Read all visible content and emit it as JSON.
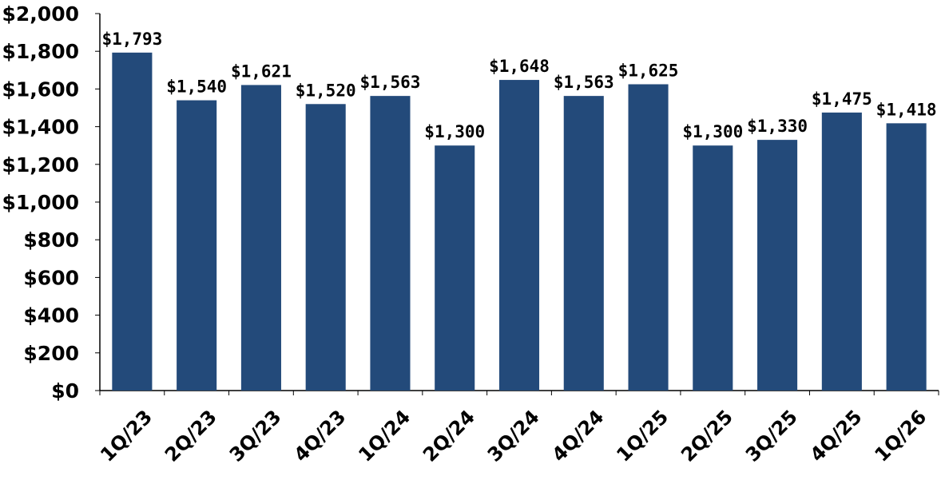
{
  "chart_data": {
    "type": "bar",
    "title": "",
    "xlabel": "",
    "ylabel": "",
    "categories": [
      "1Q/23",
      "2Q/23",
      "3Q/23",
      "4Q/23",
      "1Q/24",
      "2Q/24",
      "3Q/24",
      "4Q/24",
      "1Q/25",
      "2Q/25",
      "3Q/25",
      "4Q/25",
      "1Q/26"
    ],
    "values": [
      1793,
      1540,
      1621,
      1520,
      1563,
      1300,
      1648,
      1563,
      1625,
      1300,
      1330,
      1475,
      1418
    ],
    "value_labels": [
      "$1,793",
      "$1,540",
      "$1,621",
      "$1,520",
      "$1,563",
      "$1,300",
      "$1,648",
      "$1,563",
      "$1,625",
      "$1,300",
      "$1,330",
      "$1,475",
      "$1,418"
    ],
    "ylim": [
      0,
      2000
    ],
    "yticks": [
      0,
      200,
      400,
      600,
      800,
      1000,
      1200,
      1400,
      1600,
      1800,
      2000
    ],
    "ytick_labels": [
      "$0",
      "$200",
      "$400",
      "$600",
      "$800",
      "$1,000",
      "$1,200",
      "$1,400",
      "$1,600",
      "$1,800",
      "$2,000"
    ],
    "grid": false,
    "legend": "none",
    "bar_color": "#234A7A",
    "x_label_rotation": -45
  }
}
